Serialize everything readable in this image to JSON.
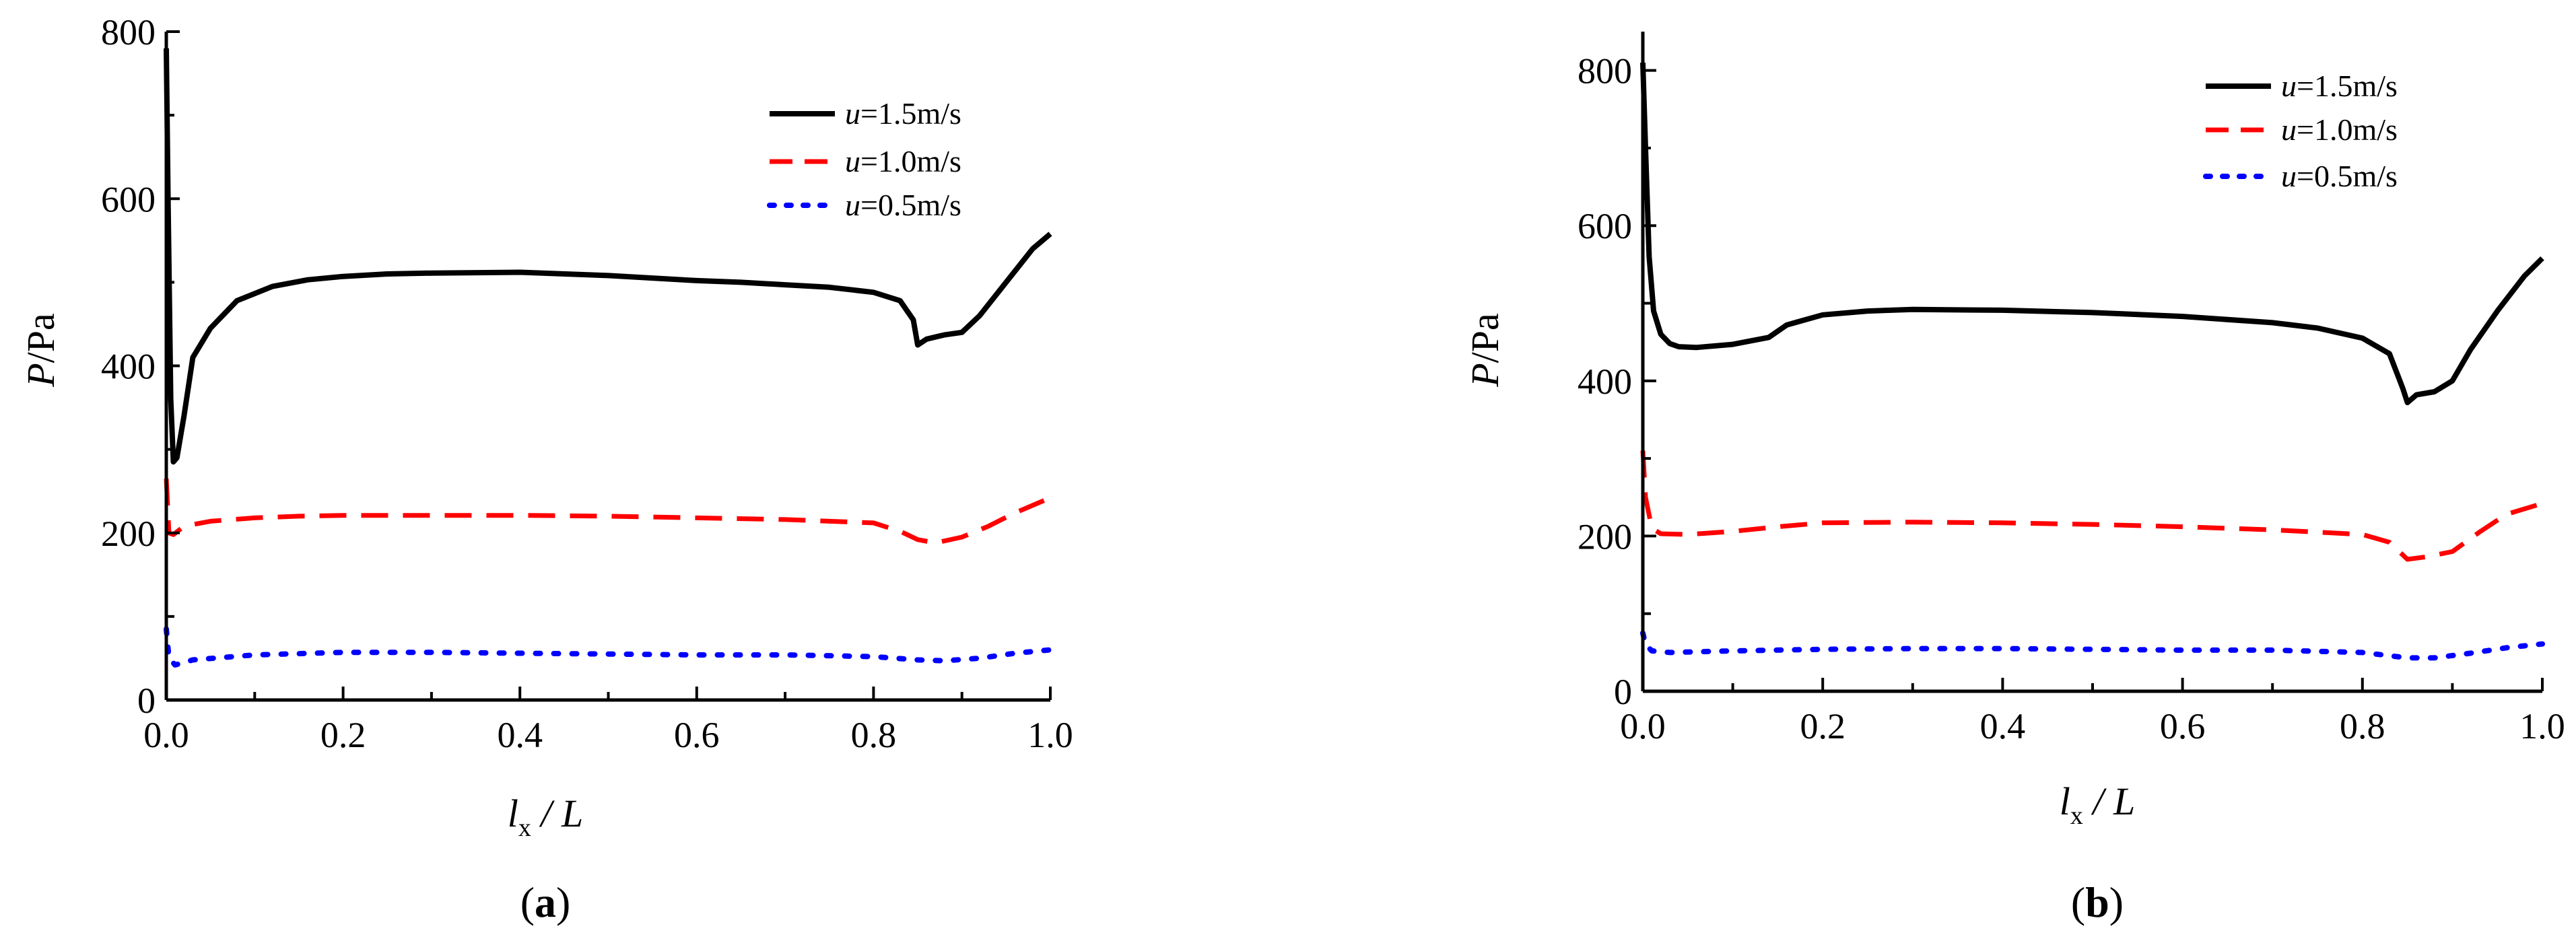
{
  "chart_data": [
    {
      "type": "line",
      "panel_label": "a",
      "xlabel": {
        "main": "l",
        "sub": "x",
        "rest": " / L"
      },
      "ylabel": {
        "main": "P",
        "rest": "/Pa"
      },
      "xlim": [
        0,
        1.0
      ],
      "ylim": [
        0,
        800
      ],
      "x_ticks": [
        "0.0",
        "0.2",
        "0.4",
        "0.6",
        "0.8",
        "1.0"
      ],
      "y_ticks": [
        "0",
        "200",
        "400",
        "600",
        "800"
      ],
      "legend": [
        {
          "var": "u",
          "text": "=1.5m/s"
        },
        {
          "var": "u",
          "text": "=1.0m/s"
        },
        {
          "var": "u",
          "text": "=0.5m/s"
        }
      ],
      "series": [
        {
          "name": "u=1.5m/s",
          "color": "#000000",
          "style": "solid",
          "x": [
            0,
            0.002,
            0.005,
            0.008,
            0.012,
            0.02,
            0.03,
            0.05,
            0.08,
            0.12,
            0.16,
            0.2,
            0.25,
            0.3,
            0.4,
            0.5,
            0.6,
            0.65,
            0.7,
            0.75,
            0.8,
            0.83,
            0.845,
            0.85,
            0.86,
            0.88,
            0.9,
            0.92,
            0.95,
            0.98,
            1.0
          ],
          "y": [
            780,
            600,
            360,
            285,
            290,
            340,
            410,
            445,
            478,
            495,
            503,
            507,
            510,
            511,
            512,
            508,
            502,
            500,
            497,
            494,
            488,
            478,
            455,
            425,
            432,
            437,
            440,
            460,
            500,
            540,
            558
          ]
        },
        {
          "name": "u=1.0m/s",
          "color": "#ff0000",
          "style": "dashed",
          "x": [
            0,
            0.003,
            0.008,
            0.02,
            0.05,
            0.1,
            0.15,
            0.2,
            0.3,
            0.4,
            0.5,
            0.6,
            0.7,
            0.8,
            0.83,
            0.85,
            0.87,
            0.9,
            0.93,
            0.96,
            1.0
          ],
          "y": [
            265,
            200,
            198,
            208,
            214,
            218,
            220,
            221,
            221,
            221,
            220,
            218,
            216,
            212,
            202,
            192,
            188,
            195,
            208,
            224,
            242
          ]
        },
        {
          "name": "u=0.5m/s",
          "color": "#0000ff",
          "style": "dotted",
          "x": [
            0,
            0.003,
            0.01,
            0.03,
            0.1,
            0.2,
            0.3,
            0.4,
            0.5,
            0.6,
            0.7,
            0.8,
            0.85,
            0.88,
            0.92,
            0.96,
            1.0
          ],
          "y": [
            85,
            50,
            42,
            48,
            54,
            57,
            57,
            56,
            55,
            54,
            54,
            52,
            48,
            47,
            50,
            56,
            60
          ]
        }
      ]
    },
    {
      "type": "line",
      "panel_label": "b",
      "xlabel": {
        "main": "l",
        "sub": "x",
        "rest": " / L"
      },
      "ylabel": {
        "main": "P",
        "rest": "/Pa"
      },
      "xlim": [
        0,
        1.0
      ],
      "ylim": [
        0,
        850
      ],
      "x_ticks": [
        "0.0",
        "0.2",
        "0.4",
        "0.6",
        "0.8",
        "1.0"
      ],
      "y_ticks": [
        "0",
        "200",
        "400",
        "600",
        "800"
      ],
      "legend": [
        {
          "var": "u",
          "text": "=1.5m/s"
        },
        {
          "var": "u",
          "text": "=1.0m/s"
        },
        {
          "var": "u",
          "text": "=0.5m/s"
        }
      ],
      "series": [
        {
          "name": "u=1.5m/s",
          "color": "#000000",
          "style": "solid",
          "x": [
            0,
            0.003,
            0.007,
            0.012,
            0.02,
            0.03,
            0.04,
            0.06,
            0.1,
            0.14,
            0.16,
            0.2,
            0.25,
            0.3,
            0.4,
            0.5,
            0.6,
            0.7,
            0.75,
            0.8,
            0.83,
            0.845,
            0.85,
            0.86,
            0.88,
            0.9,
            0.92,
            0.95,
            0.98,
            1.0
          ],
          "y": [
            810,
            700,
            560,
            490,
            460,
            448,
            444,
            443,
            447,
            456,
            472,
            485,
            490,
            492,
            491,
            488,
            483,
            475,
            468,
            455,
            435,
            390,
            372,
            382,
            386,
            400,
            440,
            490,
            535,
            558
          ]
        },
        {
          "name": "u=1.0m/s",
          "color": "#ff0000",
          "style": "dashed",
          "x": [
            0,
            0.003,
            0.01,
            0.02,
            0.05,
            0.1,
            0.15,
            0.2,
            0.3,
            0.4,
            0.5,
            0.6,
            0.7,
            0.8,
            0.83,
            0.85,
            0.87,
            0.9,
            0.93,
            0.96,
            1.0
          ],
          "y": [
            310,
            250,
            210,
            203,
            202,
            206,
            212,
            217,
            218,
            217,
            215,
            212,
            208,
            202,
            192,
            170,
            173,
            180,
            205,
            228,
            242
          ]
        },
        {
          "name": "u=0.5m/s",
          "color": "#0000ff",
          "style": "dotted",
          "x": [
            0,
            0.003,
            0.01,
            0.03,
            0.1,
            0.2,
            0.3,
            0.4,
            0.5,
            0.6,
            0.7,
            0.8,
            0.85,
            0.88,
            0.92,
            0.96,
            1.0
          ],
          "y": [
            75,
            60,
            52,
            50,
            52,
            54,
            55,
            55,
            54,
            53,
            53,
            50,
            43,
            43,
            49,
            56,
            61
          ]
        }
      ]
    }
  ]
}
